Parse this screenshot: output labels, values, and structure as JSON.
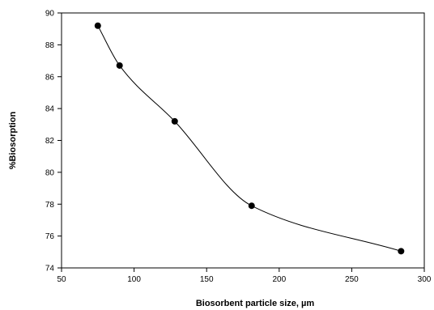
{
  "chart_data": {
    "type": "line",
    "title": "",
    "xlabel": "Biosorbent particle size, µm",
    "ylabel": "%Biosorption",
    "xlim": [
      50,
      300
    ],
    "ylim": [
      74,
      90
    ],
    "x_ticks": [
      50,
      100,
      150,
      200,
      250,
      300
    ],
    "y_ticks": [
      74,
      76,
      78,
      80,
      82,
      84,
      86,
      88,
      90
    ],
    "grid": false,
    "smooth": true,
    "series": [
      {
        "x": [
          75,
          90,
          128,
          181,
          284
        ],
        "y": [
          89.2,
          86.7,
          83.2,
          77.9,
          75.05
        ],
        "color": "#000000",
        "marker": "circle"
      }
    ]
  }
}
